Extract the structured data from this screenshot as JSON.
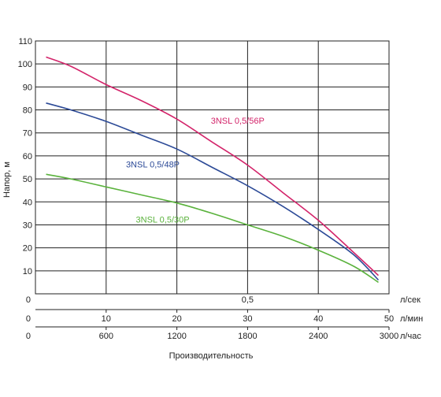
{
  "chart_data": {
    "type": "line",
    "ylabel": "Напор, м",
    "xlabel": "Производительность",
    "ylim": [
      0,
      110
    ],
    "y_ticks": [
      0,
      10,
      20,
      30,
      40,
      50,
      60,
      70,
      80,
      90,
      100,
      110
    ],
    "x_axes": [
      {
        "unit": "л/сек",
        "ticks": [
          {
            "value": 0.5,
            "label": "0,5"
          }
        ],
        "zero_label": "0"
      },
      {
        "unit": "л/мин",
        "ticks": [
          {
            "value": 10,
            "label": "10"
          },
          {
            "value": 20,
            "label": "20"
          },
          {
            "value": 30,
            "label": "30"
          },
          {
            "value": 40,
            "label": "40"
          },
          {
            "value": 50,
            "label": "50"
          }
        ],
        "zero_label": "0"
      },
      {
        "unit": "л/час",
        "ticks": [
          {
            "value": 600,
            "label": "600"
          },
          {
            "value": 1200,
            "label": "1200"
          },
          {
            "value": 1800,
            "label": "1800"
          },
          {
            "value": 2400,
            "label": "2400"
          },
          {
            "value": 3000,
            "label": "3000"
          }
        ],
        "zero_label": "0"
      }
    ],
    "x_grid_lpm": [
      10,
      20,
      30,
      40,
      50
    ],
    "xlim_lpm": [
      0,
      50
    ],
    "grid": true,
    "series": [
      {
        "name": "3NSL 0,5/56P",
        "color": "#d3246a",
        "x": [
          1.5,
          5,
          10,
          15,
          20,
          25,
          30,
          35,
          40,
          45,
          48.5
        ],
        "y": [
          103,
          99,
          91,
          84,
          76,
          66,
          56,
          44,
          32,
          18,
          8
        ]
      },
      {
        "name": "3NSL 0,5/48P",
        "color": "#2c4a97",
        "x": [
          1.5,
          5,
          10,
          15,
          20,
          25,
          30,
          35,
          40,
          45,
          48.5
        ],
        "y": [
          83,
          80,
          75,
          69,
          63,
          55,
          47,
          38,
          28,
          17,
          6
        ]
      },
      {
        "name": "3NSL 0,5/30P",
        "color": "#5ab23c",
        "x": [
          1.5,
          5,
          10,
          15,
          20,
          25,
          30,
          35,
          40,
          45,
          48.5
        ],
        "y": [
          52,
          50,
          46.5,
          43,
          39.5,
          35,
          30,
          25,
          19,
          12,
          5
        ]
      }
    ]
  }
}
